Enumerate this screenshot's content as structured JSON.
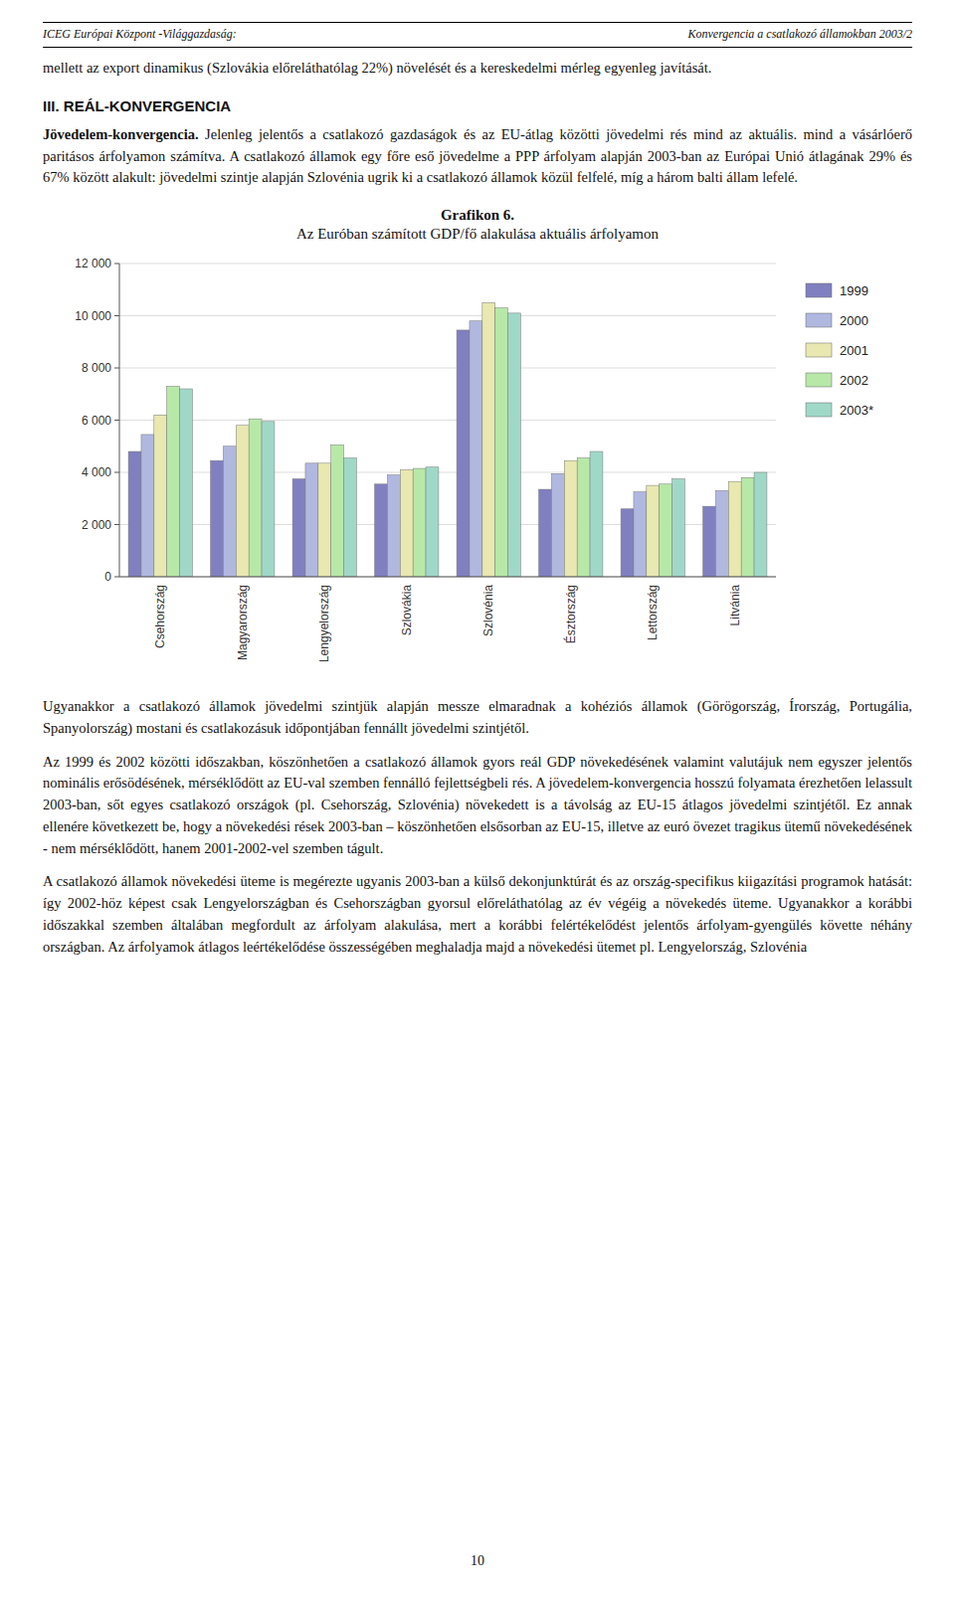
{
  "header_left": "ICEG Európai Központ -Világgazdaság:",
  "header_right": "Konvergencia a csatlakozó államokban 2003/2",
  "para1": "mellett az export dinamikus (Szlovákia előreláthatólag 22%) növelését és a kereskedelmi mérleg egyenleg javítását.",
  "section_heading": "III. REÁL-KONVERGENCIA",
  "para2_bold": "Jövedelem-konvergencia.",
  "para2_rest": " Jelenleg jelentős a csatlakozó gazdaságok és az EU-átlag közötti jövedelmi rés mind az aktuális. mind a vásárlóerő paritásos árfolyamon számítva. A csatlakozó államok egy főre eső jövedelme a PPP árfolyam alapján 2003-ban az Európai Unió átlagának 29% és 67% között alakult: jövedelmi szintje alapján Szlovénia ugrik ki a csatlakozó államok közül felfelé, míg a három balti állam lefelé.",
  "chart_data": {
    "type": "bar",
    "title": "Grafikon 6.",
    "subtitle": "Az Euróban számított GDP/fő alakulása aktuális árfolyamon",
    "categories": [
      "Csehország",
      "Magyarország",
      "Lengyelország",
      "Szlovákia",
      "Szlovénia",
      "Észtország",
      "Lettország",
      "Litvánia"
    ],
    "series": [
      {
        "name": "1999",
        "color": "#8080c0",
        "values": [
          4800,
          4450,
          3750,
          3550,
          9450,
          3350,
          2600,
          2700
        ]
      },
      {
        "name": "2000",
        "color": "#b0b8e0",
        "values": [
          5450,
          5000,
          4350,
          3900,
          9800,
          3950,
          3250,
          3300
        ]
      },
      {
        "name": "2001",
        "color": "#e8e8b0",
        "values": [
          6200,
          5800,
          4350,
          4100,
          10500,
          4450,
          3500,
          3650
        ]
      },
      {
        "name": "2002",
        "color": "#b8e8a8",
        "values": [
          7300,
          6050,
          5050,
          4150,
          10300,
          4550,
          3550,
          3800
        ]
      },
      {
        "name": "2003*",
        "color": "#a0d8c8",
        "values": [
          7200,
          5950,
          4550,
          4200,
          10100,
          4800,
          3750,
          4000
        ]
      }
    ],
    "ylim": [
      0,
      12000
    ],
    "yticks": [
      0,
      {
        "value": 2000,
        "label": "2 000"
      },
      {
        "value": 4000,
        "label": "4 000"
      },
      {
        "value": 6000,
        "label": "6 000"
      },
      {
        "value": 8000,
        "label": "8 000"
      },
      {
        "value": 10000,
        "label": "10 000"
      },
      {
        "value": 12000,
        "label": "12 000"
      }
    ],
    "grid": true,
    "legend": "right"
  },
  "para3": "Ugyanakkor a csatlakozó államok jövedelmi szintjük alapján messze elmaradnak a kohéziós államok (Görögország, Írország, Portugália, Spanyolország) mostani és csatlakozásuk időpontjában fennállt jövedelmi szintjétől.",
  "para4": "Az 1999 és 2002 közötti időszakban, köszönhetően a csatlakozó államok gyors reál GDP növekedésének valamint valutájuk nem egyszer jelentős nominális erősödésének, mérséklődött az EU-val szemben fennálló fejlettségbeli rés. A jövedelem-konvergencia hosszú folyamata érezhetően lelassult 2003-ban, sőt egyes csatlakozó országok (pl. Csehország, Szlovénia) növekedett is a távolság az EU-15 átlagos jövedelmi szintjétől. Ez annak ellenére következett be, hogy a növekedési rések 2003-ban – köszönhetően elsősorban az EU-15, illetve az euró övezet tragikus ütemű növekedésének - nem mérséklődött, hanem 2001-2002-vel szemben tágult.",
  "para5": "A csatlakozó államok növekedési üteme is megérezte ugyanis 2003-ban a külső dekonjunktúrát és az ország-specifikus kiigazítási programok hatását: így 2002-höz képest csak Lengyelországban és Csehországban gyorsul előreláthatólag az év végéig a növekedés üteme. Ugyanakkor a korábbi időszakkal szemben általában megfordult az árfolyam alakulása, mert a korábbi felértékelődést jelentős árfolyam-gyengülés követte néhány országban. Az árfolyamok átlagos leértékelődése összességében meghaladja majd a növekedési ütemet pl. Lengyelország, Szlovénia",
  "page_number": "10"
}
